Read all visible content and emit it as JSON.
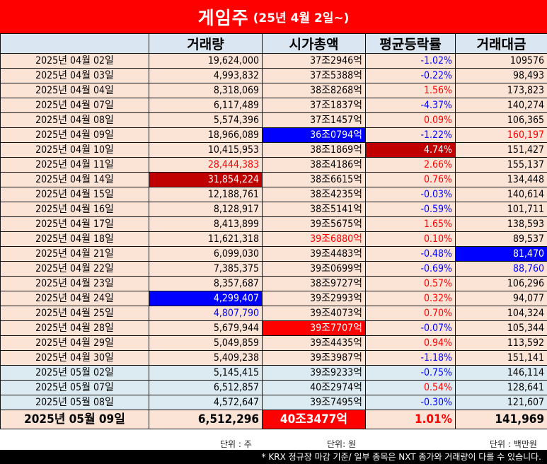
{
  "title": {
    "main": "게임주",
    "sub": "(25년 4월 2일~)"
  },
  "headers": [
    "",
    "거래량",
    "시가총액",
    "평균등락률",
    "거래대금"
  ],
  "rows": [
    {
      "date": "2025년 04월 02일",
      "volume": "19,624,000",
      "mcap": "37조2946억",
      "change": "-1.02%",
      "amount": "109576"
    },
    {
      "date": "2025년 04월 03일",
      "volume": "4,993,832",
      "mcap": "37조5388억",
      "change": "-0.22%",
      "amount": "98,493"
    },
    {
      "date": "2025년 04월 04일",
      "volume": "8,318,069",
      "mcap": "38조8268억",
      "change": "1.56%",
      "amount": "173,823"
    },
    {
      "date": "2025년 04월 07일",
      "volume": "6,117,489",
      "mcap": "37조1837억",
      "change": "-4.37%",
      "amount": "140,274"
    },
    {
      "date": "2025년 04월 08일",
      "volume": "5,574,396",
      "mcap": "37조1457억",
      "change": "0.09%",
      "amount": "106,365"
    },
    {
      "date": "2025년 04월 09일",
      "volume": "18,966,089",
      "mcap": "36조0794억",
      "change": "-1.22%",
      "amount": "160,197"
    },
    {
      "date": "2025년 04월 10일",
      "volume": "10,415,953",
      "mcap": "38조1869억",
      "change": "4.74%",
      "amount": "151,427"
    },
    {
      "date": "2025년 04월 11일",
      "volume": "28,444,383",
      "mcap": "38조4186억",
      "change": "2.66%",
      "amount": "155,137"
    },
    {
      "date": "2025년 04월 14일",
      "volume": "31,854,224",
      "mcap": "38조6615억",
      "change": "0.76%",
      "amount": "134,448"
    },
    {
      "date": "2025년 04월 15일",
      "volume": "12,188,761",
      "mcap": "38조4235억",
      "change": "-0.03%",
      "amount": "140,614"
    },
    {
      "date": "2025년 04월 16일",
      "volume": "8,128,917",
      "mcap": "38조5141억",
      "change": "-0.59%",
      "amount": "101,711"
    },
    {
      "date": "2025년 04월 17일",
      "volume": "8,413,899",
      "mcap": "39조5675억",
      "change": "1.65%",
      "amount": "138,593"
    },
    {
      "date": "2025년 04월 18일",
      "volume": "11,621,318",
      "mcap": "39조6880억",
      "change": "0.10%",
      "amount": "89,537"
    },
    {
      "date": "2025년 04월 21일",
      "volume": "6,099,030",
      "mcap": "39조4483억",
      "change": "-0.48%",
      "amount": "81,470"
    },
    {
      "date": "2025년 04월 22일",
      "volume": "7,385,375",
      "mcap": "39조0699억",
      "change": "-0.69%",
      "amount": "88,760"
    },
    {
      "date": "2025년 04월 23일",
      "volume": "8,357,687",
      "mcap": "38조9727억",
      "change": "0.57%",
      "amount": "106,296"
    },
    {
      "date": "2025년 04월 24일",
      "volume": "4,299,407",
      "mcap": "39조2993억",
      "change": "0.32%",
      "amount": "94,077"
    },
    {
      "date": "2025년 04월 25일",
      "volume": "4,807,790",
      "mcap": "39조4073억",
      "change": "0.70%",
      "amount": "104,324"
    },
    {
      "date": "2025년 04월 28일",
      "volume": "5,679,944",
      "mcap": "39조7707억",
      "change": "-0.07%",
      "amount": "105,344"
    },
    {
      "date": "2025년 04월 29일",
      "volume": "5,049,859",
      "mcap": "39조4435억",
      "change": "0.94%",
      "amount": "113,592"
    },
    {
      "date": "2025년 04월 30일",
      "volume": "5,409,238",
      "mcap": "39조3987억",
      "change": "-1.18%",
      "amount": "151,141"
    },
    {
      "date": "2025년 05월 02일",
      "volume": "5,145,415",
      "mcap": "39조9233억",
      "change": "-0.75%",
      "amount": "146,114"
    },
    {
      "date": "2025년 05월 07일",
      "volume": "6,512,857",
      "mcap": "40조2974억",
      "change": "0.54%",
      "amount": "128,641"
    },
    {
      "date": "2025년 05월 08일",
      "volume": "4,572,647",
      "mcap": "39조7495억",
      "change": "-0.30%",
      "amount": "121,607"
    }
  ],
  "last_row": {
    "date": "2025년 05월 09일",
    "volume": "6,512,296",
    "mcap": "40조3477억",
    "change": "1.01%",
    "amount": "141,969"
  },
  "units": {
    "volume": "단위 : 주",
    "mcap": "단위: 원",
    "amount": "단위 : 백만원"
  },
  "footnote": "* KRX 정규장 마감 기준/ 일부 종목은 NXT 종가와 거래량이 다를 수 있습니다.",
  "colors": {
    "title_bg": "#ff0000",
    "header_bg": "#dbe6f3",
    "april_row": "#fbe3d6",
    "may_row": "#dcebf2",
    "up": "#ff0000",
    "down": "#0000ff",
    "highlight_blue": "#0000ff",
    "highlight_red": "#ff0000",
    "highlight_dark_red": "#c00000"
  }
}
